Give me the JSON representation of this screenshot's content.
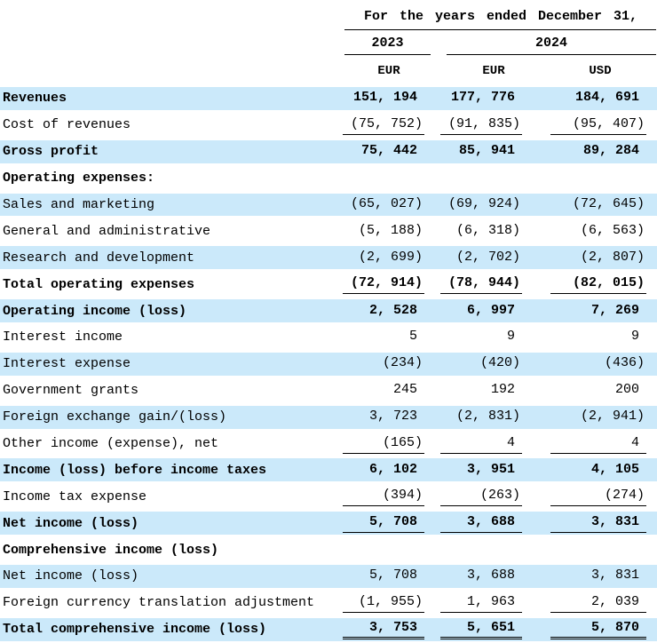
{
  "header": {
    "period_title": "For the years ended December 31,",
    "year_left": "2023",
    "year_right": "2024",
    "currencies": [
      "EUR",
      "EUR",
      "USD"
    ],
    "accent_shading_color": "#cbe9fa"
  },
  "rows": [
    {
      "label": "Revenues",
      "values": [
        "151, 194",
        "177, 776",
        "184, 691"
      ]
    },
    {
      "label": "Cost of revenues",
      "values": [
        "(75, 752)",
        "(91, 835)",
        "(95, 407)"
      ]
    },
    {
      "label": "Gross profit",
      "values": [
        "75, 442",
        "85, 941",
        "89, 284"
      ]
    },
    {
      "label": "Operating expenses:",
      "values": [
        "",
        "",
        ""
      ]
    },
    {
      "label": "Sales and marketing",
      "values": [
        "(65, 027)",
        "(69, 924)",
        "(72, 645)"
      ]
    },
    {
      "label": "General and administrative",
      "values": [
        "(5, 188)",
        "(6, 318)",
        "(6, 563)"
      ]
    },
    {
      "label": "Research and development",
      "values": [
        "(2, 699)",
        "(2, 702)",
        "(2, 807)"
      ]
    },
    {
      "label": "Total operating expenses",
      "values": [
        "(72, 914)",
        "(78, 944)",
        "(82, 015)"
      ]
    },
    {
      "label": "Operating income (loss)",
      "values": [
        "2, 528",
        "6, 997",
        "7, 269"
      ]
    },
    {
      "label": "Interest income",
      "values": [
        "5",
        "9",
        "9"
      ]
    },
    {
      "label": "Interest expense",
      "values": [
        "(234)",
        "(420)",
        "(436)"
      ]
    },
    {
      "label": "Government grants",
      "values": [
        "245",
        "192",
        "200"
      ]
    },
    {
      "label": "Foreign exchange gain/(loss)",
      "values": [
        "3, 723",
        "(2, 831)",
        "(2, 941)"
      ]
    },
    {
      "label": "Other income (expense), net",
      "values": [
        "(165)",
        "4",
        "4"
      ]
    },
    {
      "label": "Income (loss) before income taxes",
      "values": [
        "6, 102",
        "3, 951",
        "4, 105"
      ]
    },
    {
      "label": "Income tax expense",
      "values": [
        "(394)",
        "(263)",
        "(274)"
      ]
    },
    {
      "label": "Net income (loss)",
      "values": [
        "5, 708",
        "3, 688",
        "3, 831"
      ]
    },
    {
      "label": "Comprehensive income (loss)",
      "values": [
        "",
        "",
        ""
      ]
    },
    {
      "label": "Net income (loss)",
      "values": [
        "5, 708",
        "3, 688",
        "3, 831"
      ]
    },
    {
      "label": "Foreign currency translation adjustment",
      "values": [
        "(1, 955)",
        "1, 963",
        "2, 039"
      ]
    },
    {
      "label": "Total comprehensive income (loss)",
      "values": [
        "3, 753",
        "5, 651",
        "5, 870"
      ]
    }
  ]
}
